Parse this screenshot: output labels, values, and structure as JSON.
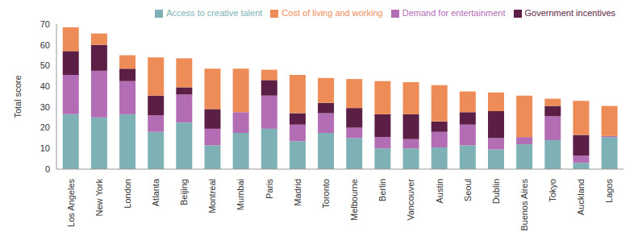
{
  "chart_data": {
    "type": "bar",
    "stacked": true,
    "grid": false,
    "legend": "upper right",
    "y_label": "Total score",
    "categories": [
      "Los Angeles",
      "New York",
      "London",
      "Atlanta",
      "Beijing",
      "Montreal",
      "Mumbai",
      "Paris",
      "Madrid",
      "Toronto",
      "Melbourne",
      "Berlin",
      "Vancouver",
      "Austin",
      "Seoul",
      "Dublin",
      "Buenos Aires",
      "Tokyo",
      "Auckland",
      "Lagos"
    ],
    "ylim": [
      0,
      70
    ],
    "yticks": [
      0,
      10,
      20,
      30,
      40,
      50,
      60,
      70
    ],
    "series": [
      {
        "name": "Access to creative talent",
        "color": "#7eb1b5",
        "values": [
          26.5,
          25,
          26.5,
          18,
          22.5,
          11.5,
          17.5,
          19.5,
          13.5,
          17.5,
          15,
          10,
          10,
          10.5,
          11.5,
          9.5,
          12,
          14,
          3,
          15.5
        ]
      },
      {
        "name": "Demand for entertainment",
        "color": "#b36db4",
        "values": [
          19,
          22.5,
          16,
          8,
          13.5,
          8,
          10,
          16,
          8,
          9.5,
          5,
          5.5,
          4.5,
          7.5,
          10,
          5.5,
          3.5,
          11.5,
          3.5,
          0.5
        ]
      },
      {
        "name": "Government incentives",
        "color": "#5b1f45",
        "values": [
          11.5,
          12.5,
          6,
          9.5,
          3.5,
          9.5,
          0,
          7.5,
          5.5,
          5,
          9.5,
          11,
          12,
          5,
          6,
          13,
          0,
          5,
          10,
          0
        ]
      },
      {
        "name": "Cost of living and working",
        "color": "#ee8c58",
        "values": [
          11.5,
          5.5,
          6.5,
          18.5,
          14,
          19.5,
          21,
          5,
          18.5,
          12,
          14,
          16,
          15.5,
          17.5,
          10,
          9,
          20,
          3.5,
          16.5,
          14.5
        ]
      }
    ]
  }
}
